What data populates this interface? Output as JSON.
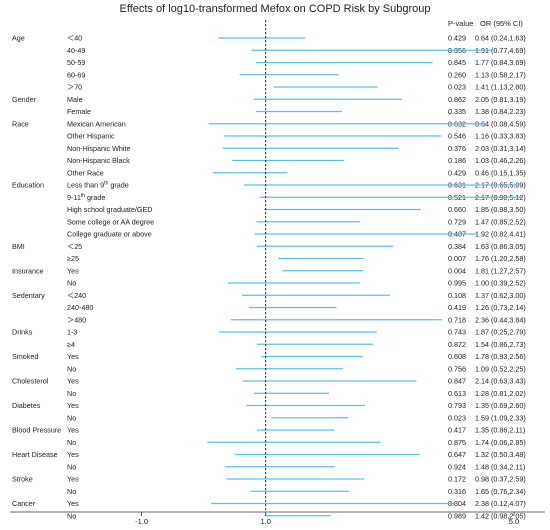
{
  "chart_data": {
    "type": "forest",
    "title": "Effects of log10-transformed Mefox on COPD Risk by Subgroup",
    "columns": {
      "p": "P-value",
      "or": "OR (95% CI)"
    },
    "x_ticks": [
      {
        "label": "-1.0",
        "value": -1.0
      },
      {
        "label": "1.0",
        "value": 1.0
      },
      {
        "label": "5.0",
        "value": 5.0
      }
    ],
    "xlim": [
      -3.2,
      5.5
    ],
    "reference_line": 1.0,
    "groups": [
      {
        "name": "Age",
        "rows": [
          {
            "label": "＜40",
            "p": "0.429",
            "or_text": "0.64 (0.24,1.63)",
            "or": 0.64,
            "lo": 0.24,
            "hi": 1.63
          },
          {
            "label": "40-49",
            "p": "0.356",
            "or_text": "1.91 (0.77,4.69)",
            "or": 1.91,
            "lo": 0.77,
            "hi": 4.69
          },
          {
            "label": "50-59",
            "p": "0.845",
            "or_text": "1.77 (0.84,3.69)",
            "or": 1.77,
            "lo": 0.84,
            "hi": 3.69
          },
          {
            "label": "60-69",
            "p": "0.260",
            "or_text": "1.13 (0.58,2.17)",
            "or": 1.13,
            "lo": 0.58,
            "hi": 2.17
          },
          {
            "label": "＞70",
            "p": "0.023",
            "or_text": "1.41 (1.13,2.80)",
            "or": 1.41,
            "lo": 1.13,
            "hi": 2.8
          }
        ]
      },
      {
        "name": "Gender",
        "rows": [
          {
            "label": "Male",
            "p": "0.862",
            "or_text": "2.05 (0.81,3.19)",
            "or": 2.05,
            "lo": 0.81,
            "hi": 3.19
          },
          {
            "label": "Female",
            "p": "0.335",
            "or_text": "1.38 (0.84,2.23)",
            "or": 1.38,
            "lo": 0.84,
            "hi": 2.23
          }
        ]
      },
      {
        "name": "Race",
        "rows": [
          {
            "label": "Mexican American",
            "p": "0.632",
            "or_text": "0.64 (0.08,4.59)",
            "or": 0.64,
            "lo": 0.08,
            "hi": 4.59
          },
          {
            "label": "Other Hispanic",
            "p": "0.546",
            "or_text": "1.16 (0.33,3.83)",
            "or": 1.16,
            "lo": 0.33,
            "hi": 3.83
          },
          {
            "label": "Non-Hispanic White",
            "p": "0.376",
            "or_text": "2.03 (0.31,3.14)",
            "or": 2.03,
            "lo": 0.31,
            "hi": 3.14
          },
          {
            "label": "Non-Hispanic Black",
            "p": "0.186",
            "or_text": "1.03 (0.46,2.26)",
            "or": 1.03,
            "lo": 0.46,
            "hi": 2.26
          },
          {
            "label": "Other Race",
            "p": "0.429",
            "or_text": "0.46 (0.15,1.35)",
            "or": 0.46,
            "lo": 0.15,
            "hi": 1.35
          }
        ]
      },
      {
        "name": "Education",
        "rows": [
          {
            "label": "Less than 9",
            "sup": "th",
            "suffix": " grade",
            "p": "0.631",
            "or_text": "2.17 (0.65,5.09)",
            "or": 2.17,
            "lo": 0.65,
            "hi": 5.09
          },
          {
            "label": "9-11",
            "sup": "th",
            "suffix": "  grade",
            "p": "0.521",
            "or_text": "2.17 (0.90,5.12)",
            "or": 2.17,
            "lo": 0.9,
            "hi": 5.12
          },
          {
            "label": "High school graduate/GED",
            "p": "0.660",
            "or_text": "1.85 (0.98,3.50)",
            "or": 1.85,
            "lo": 0.98,
            "hi": 3.5
          },
          {
            "label": "Some college or AA degree",
            "p": "0.729",
            "or_text": "1.47 (0.85,2.52)",
            "or": 1.47,
            "lo": 0.85,
            "hi": 2.52
          },
          {
            "label": "College graduate or above",
            "p": "0.487",
            "or_text": "1.92 (0.82,4.41)",
            "or": 1.92,
            "lo": 0.82,
            "hi": 4.41
          }
        ]
      },
      {
        "name": "BMI",
        "rows": [
          {
            "label": "＜25",
            "p": "0.384",
            "or_text": "1.63 (0.86,3.05)",
            "or": 1.63,
            "lo": 0.86,
            "hi": 3.05
          },
          {
            "label": "≥25",
            "p": "0.007",
            "or_text": "1.76 (1.20,2.58)",
            "or": 1.76,
            "lo": 1.2,
            "hi": 2.58
          }
        ]
      },
      {
        "name": "Insurance",
        "rows": [
          {
            "label": "Yes",
            "p": "0.004",
            "or_text": "1.81 (1.27,2.57)",
            "or": 1.81,
            "lo": 1.27,
            "hi": 2.57
          },
          {
            "label": "No",
            "p": "0.995",
            "or_text": "1.00 (0.39,2.52)",
            "or": 1.0,
            "lo": 0.39,
            "hi": 2.52
          }
        ]
      },
      {
        "name": "Sedentary",
        "rows": [
          {
            "label": "＜240",
            "p": "0.108",
            "or_text": "1.37 (0.62,3.00)",
            "or": 1.37,
            "lo": 0.62,
            "hi": 3.0
          },
          {
            "label": "240-480",
            "p": "0.419",
            "or_text": "1.26 (0.73,2.14)",
            "or": 1.26,
            "lo": 0.73,
            "hi": 2.14
          },
          {
            "label": "＞480",
            "p": "0.718",
            "or_text": "2.36 (0.44,3.84)",
            "or": 2.36,
            "lo": 0.44,
            "hi": 3.84
          }
        ]
      },
      {
        "name": "Drinks",
        "rows": [
          {
            "label": "1-3",
            "p": "0.743",
            "or_text": "1.87 (0.25,2.79)",
            "or": 1.87,
            "lo": 0.25,
            "hi": 2.79
          },
          {
            "label": "≥4",
            "p": "0.872",
            "or_text": "1.54 (0.86,2.73)",
            "or": 1.54,
            "lo": 0.86,
            "hi": 2.73
          }
        ]
      },
      {
        "name": "Smoked",
        "rows": [
          {
            "label": "Yes",
            "p": "0.608",
            "or_text": "1.78 (0.93,2.56)",
            "or": 1.78,
            "lo": 0.93,
            "hi": 2.56
          },
          {
            "label": "No",
            "p": "0.756",
            "or_text": "1.09 (0.52,2.25)",
            "or": 1.09,
            "lo": 0.52,
            "hi": 2.25
          }
        ]
      },
      {
        "name": "Cholesterol",
        "rows": [
          {
            "label": "Yes",
            "p": "0.847",
            "or_text": "2.14 (0.63,3.43)",
            "or": 2.14,
            "lo": 0.63,
            "hi": 3.43
          },
          {
            "label": "No",
            "p": "0.613",
            "or_text": "1.28 (0.81,2.02)",
            "or": 1.28,
            "lo": 0.81,
            "hi": 2.02
          }
        ]
      },
      {
        "name": "Diabetes",
        "rows": [
          {
            "label": "Yes",
            "p": "0.793",
            "or_text": "1.35 (0.69,2.60)",
            "or": 1.35,
            "lo": 0.69,
            "hi": 2.6
          },
          {
            "label": "No",
            "p": "0.023",
            "or_text": "1.59 (1.09,2.33)",
            "or": 1.59,
            "lo": 1.09,
            "hi": 2.33
          }
        ]
      },
      {
        "name": "Blood Pressure",
        "rows": [
          {
            "label": "Yes",
            "p": "0.417",
            "or_text": "1.35 (0.86,2.11)",
            "or": 1.35,
            "lo": 0.86,
            "hi": 2.11
          },
          {
            "label": "No",
            "p": "0.875",
            "or_text": "1.74 (0.06,2.85)",
            "or": 1.74,
            "lo": 0.06,
            "hi": 2.85
          }
        ]
      },
      {
        "name": "Heart Disease",
        "rows": [
          {
            "label": "Yes",
            "p": "0.647",
            "or_text": "1.32 (0.50,3.48)",
            "or": 1.32,
            "lo": 0.5,
            "hi": 3.48
          },
          {
            "label": "No",
            "p": "0.924",
            "or_text": "1.48 (0.34,2.11)",
            "or": 1.48,
            "lo": 0.34,
            "hi": 2.11
          }
        ]
      },
      {
        "name": "Stroke",
        "rows": [
          {
            "label": "Yes",
            "p": "0.172",
            "or_text": "0.98 (0.37,2.59)",
            "or": 0.98,
            "lo": 0.37,
            "hi": 2.59
          },
          {
            "label": "No",
            "p": "0.316",
            "or_text": "1.65 (0.76,2.34)",
            "or": 1.65,
            "lo": 0.76,
            "hi": 2.34
          }
        ]
      },
      {
        "name": "Cancer",
        "rows": [
          {
            "label": "Yes",
            "p": "0.804",
            "or_text": "2.38 (0.12,4.07)",
            "or": 2.38,
            "lo": 0.12,
            "hi": 4.07
          },
          {
            "label": "No",
            "p": "0.989",
            "or_text": "1.42 (0.98,2.05)",
            "or": 1.42,
            "lo": 0.98,
            "hi": 2.05
          }
        ]
      }
    ]
  },
  "colors": {
    "ci_line": "#5bc0eb",
    "ref_line": "#111111",
    "text": "#222222",
    "axis": "#333333"
  }
}
